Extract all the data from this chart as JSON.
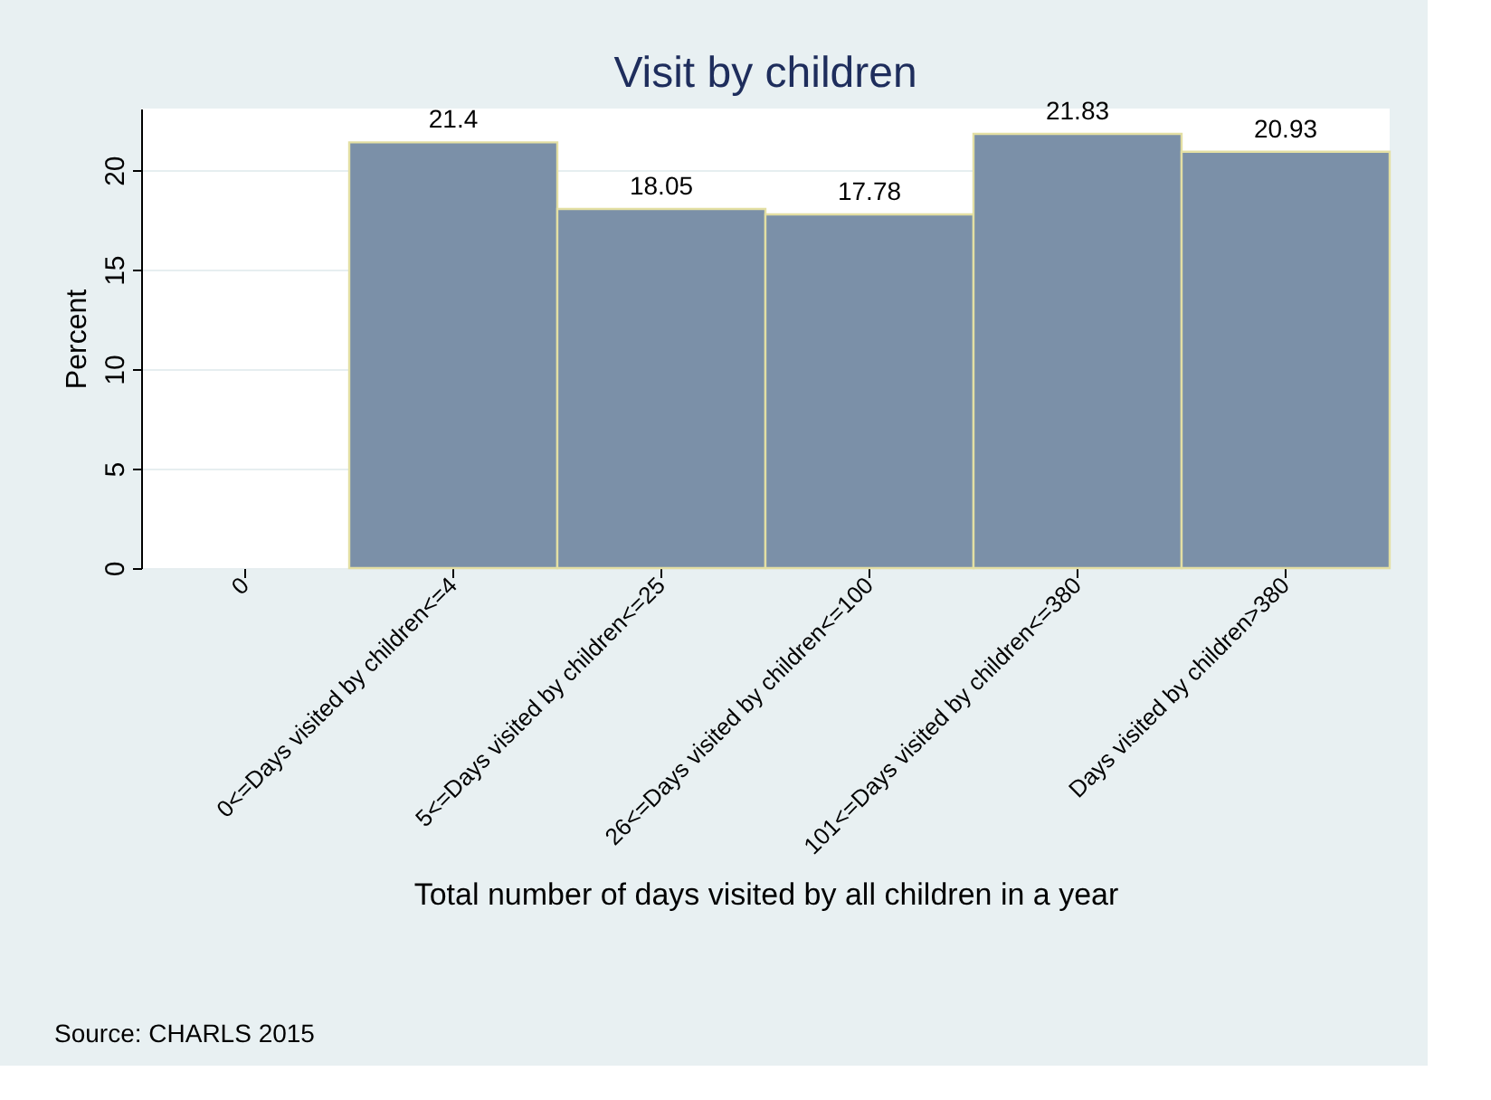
{
  "chart_data": {
    "type": "bar",
    "title": "Visit by children",
    "xlabel": "Total number of days visited by all children in a year",
    "ylabel": "Percent",
    "categories": [
      "0",
      "0<=Days visited by children<=4",
      "5<=Days visited by children<=25",
      "26<=Days visited by children<=100",
      "101<=Days visited by children<=380",
      "Days visited by children>380"
    ],
    "values": [
      null,
      21.4,
      18.05,
      17.78,
      21.83,
      20.93
    ],
    "color": "#7b90a8",
    "data_labels": true,
    "ylim": [
      0,
      23.1
    ],
    "yticks": [
      0,
      5,
      10,
      15,
      20
    ],
    "grid": "y",
    "annotations": [
      "Source: CHARLS 2015"
    ]
  }
}
